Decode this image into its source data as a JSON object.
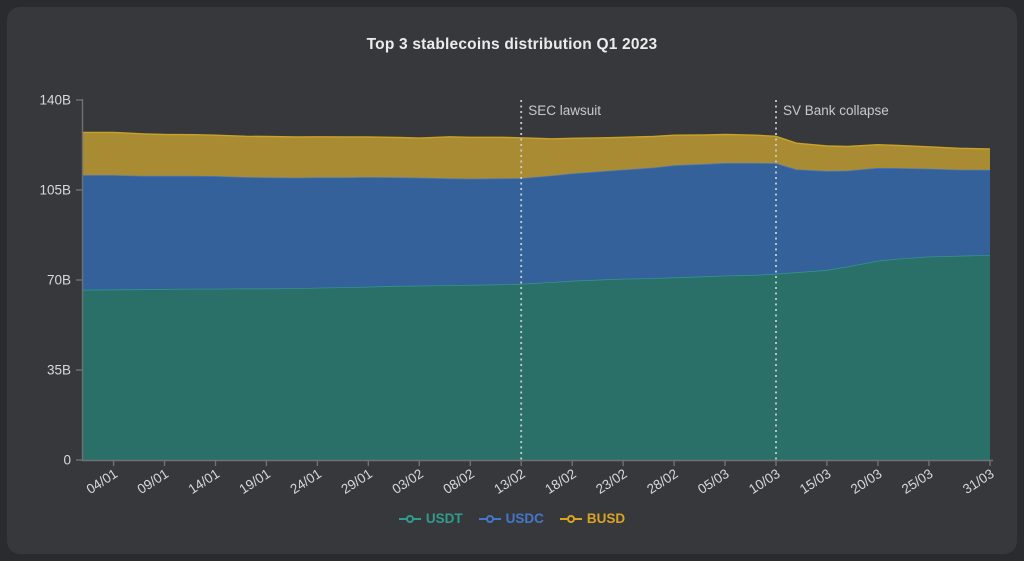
{
  "panel": {
    "title": "Top 3 stablecoins distribution Q1 2023"
  },
  "chart_data": {
    "type": "area",
    "stacked": true,
    "title": "Top 3 stablecoins distribution Q1 2023",
    "xlabel": "",
    "ylabel": "",
    "ylim": [
      0,
      140
    ],
    "x_max_day": 89,
    "grid": false,
    "legend_position": "bottom-center",
    "x_days": [
      0,
      3,
      6,
      8,
      11,
      13,
      16,
      18,
      21,
      23,
      26,
      28,
      31,
      33,
      36,
      38,
      41,
      43,
      46,
      48,
      51,
      53,
      56,
      58,
      61,
      63,
      66,
      68,
      70,
      73,
      75,
      78,
      80,
      83,
      86,
      89
    ],
    "series": [
      {
        "name": "USDT",
        "fill": "#2a7069",
        "stroke": "#2f9c8e",
        "legend_color": "#2f9c8e",
        "values": [
          66.2,
          66.3,
          66.4,
          66.5,
          66.6,
          66.6,
          66.7,
          66.7,
          66.8,
          67.0,
          67.2,
          67.4,
          67.7,
          67.8,
          68.0,
          68.1,
          68.3,
          68.5,
          69.2,
          69.7,
          70.2,
          70.5,
          70.7,
          71.0,
          71.4,
          71.7,
          72.0,
          72.4,
          73.0,
          73.9,
          75.2,
          77.5,
          78.3,
          79.1,
          79.4,
          79.7
        ]
      },
      {
        "name": "USDC",
        "fill": "#35619b",
        "stroke": "#4377c9",
        "legend_color": "#4377c9",
        "values": [
          44.6,
          44.5,
          44.1,
          44.0,
          43.9,
          43.8,
          43.3,
          43.2,
          43.0,
          42.9,
          42.7,
          42.6,
          42.2,
          42.0,
          41.5,
          41.3,
          41.2,
          41.1,
          41.4,
          41.7,
          42.1,
          42.4,
          43.0,
          43.6,
          43.7,
          43.8,
          43.5,
          43.0,
          40.0,
          38.5,
          37.3,
          36.1,
          35.2,
          34.2,
          33.5,
          33.1
        ]
      },
      {
        "name": "BUSD",
        "fill": "#a98b33",
        "stroke": "#c9a227",
        "legend_color": "#d9a420",
        "values": [
          16.6,
          16.6,
          16.3,
          16.1,
          16.0,
          15.9,
          15.9,
          15.9,
          15.8,
          15.8,
          15.7,
          15.6,
          15.5,
          15.4,
          16.2,
          16.1,
          16.0,
          15.7,
          14.3,
          13.7,
          13.0,
          12.6,
          12.1,
          11.7,
          11.3,
          11.1,
          10.8,
          10.5,
          10.2,
          9.7,
          9.4,
          9.0,
          8.8,
          8.5,
          8.3,
          8.2
        ]
      }
    ],
    "y_ticks": {
      "values": [
        0,
        35,
        70,
        105,
        140
      ],
      "labels": [
        "0",
        "35B",
        "70B",
        "105B",
        "140B"
      ]
    },
    "x_ticks": {
      "days": [
        3,
        8,
        13,
        18,
        23,
        28,
        33,
        38,
        43,
        48,
        53,
        58,
        63,
        68,
        73,
        78,
        83,
        89
      ],
      "labels": [
        "04/01",
        "09/01",
        "14/01",
        "19/01",
        "24/01",
        "29/01",
        "03/02",
        "08/02",
        "13/02",
        "18/02",
        "23/02",
        "28/02",
        "05/03",
        "10/03",
        "15/03",
        "20/03",
        "25/03",
        "31/03"
      ]
    },
    "annotations": [
      {
        "label": "SEC lawsuit",
        "day": 43
      },
      {
        "label": "SV Bank collapse",
        "day": 68
      }
    ],
    "colors": {
      "outer_background": "#2a2b2e",
      "panel_background": "#37383c",
      "title_text": "#ececec",
      "axis": "#707174",
      "tick_label": "#d8d9da",
      "annotation": "#c9cacc"
    }
  }
}
